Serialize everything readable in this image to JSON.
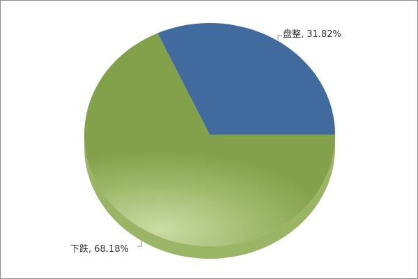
{
  "chart_data": {
    "type": "pie",
    "style": "3d",
    "slices": [
      {
        "label": "盘整",
        "value": 31.82,
        "display": "盘整, 31.82%",
        "color": "#416a9e"
      },
      {
        "label": "下跌",
        "value": 68.18,
        "display": "下跌, 68.18%",
        "color": "#83a04a"
      }
    ],
    "legend": "none"
  }
}
